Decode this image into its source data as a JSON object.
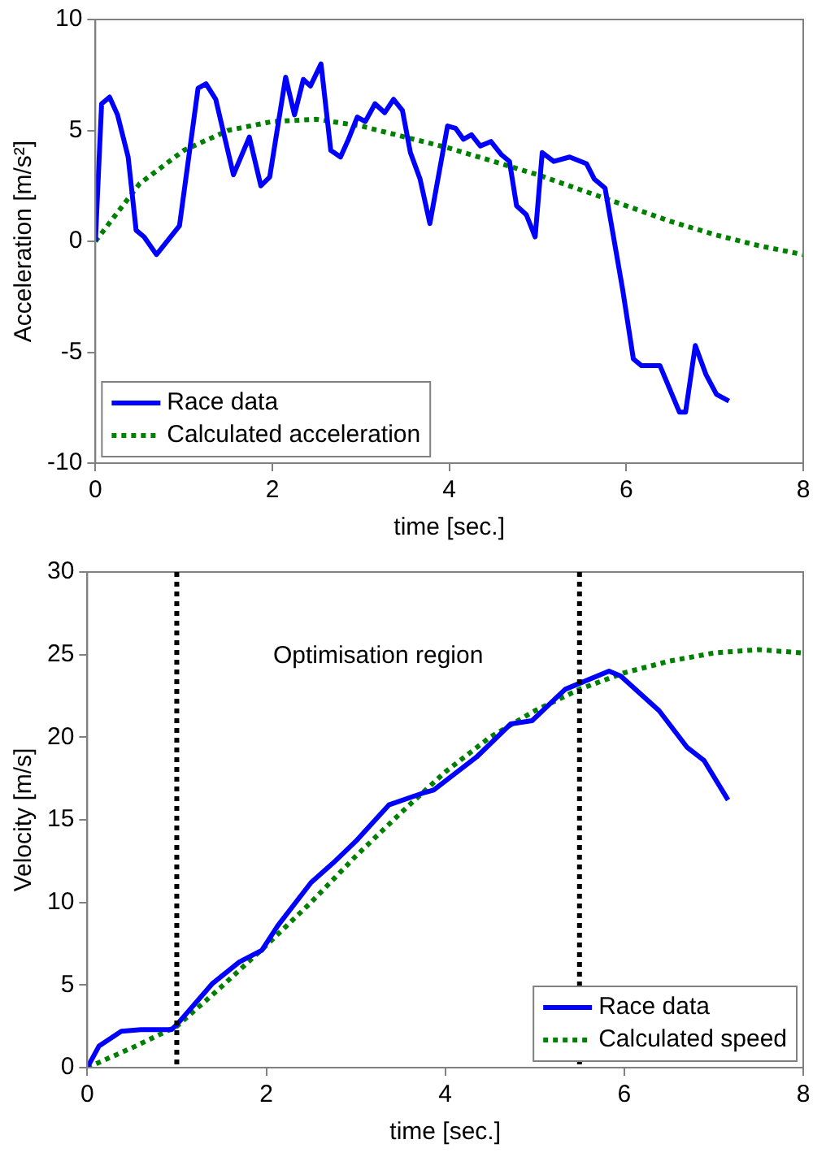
{
  "chart_data": [
    {
      "type": "line",
      "xlabel": "time [sec.]",
      "ylabel": "Acceleration [m/s²]",
      "xlim": [
        0,
        8
      ],
      "xticks": [
        0,
        2,
        4,
        6,
        8
      ],
      "ylim": [
        -10,
        10
      ],
      "yticks": [
        -10,
        -5,
        0,
        5,
        10
      ],
      "legend": "bottom left",
      "marker": "none",
      "series": [
        {
          "name": "Race data",
          "color": "#0000ff",
          "line_style": "solid",
          "x": [
            0,
            0.07,
            0.16,
            0.25,
            0.37,
            0.46,
            0.55,
            0.69,
            0.95,
            1.16,
            1.25,
            1.36,
            1.56,
            1.74,
            1.87,
            1.97,
            2.15,
            2.25,
            2.35,
            2.43,
            2.55,
            2.66,
            2.77,
            2.86,
            2.96,
            3.05,
            3.16,
            3.27,
            3.37,
            3.47,
            3.56,
            3.67,
            3.78,
            3.98,
            4.07,
            4.16,
            4.25,
            4.35,
            4.47,
            4.59,
            4.68,
            4.76,
            4.87,
            4.97,
            5.05,
            5.18,
            5.36,
            5.55,
            5.64,
            5.76,
            5.96,
            6.08,
            6.17,
            6.38,
            6.6,
            6.67,
            6.78,
            6.9,
            7.02,
            7.16
          ],
          "values": [
            0,
            6.2,
            6.5,
            5.7,
            3.8,
            0.5,
            0.2,
            -0.6,
            0.7,
            6.9,
            7.1,
            6.4,
            3.0,
            4.7,
            2.5,
            2.9,
            7.4,
            5.7,
            7.3,
            7.0,
            8.0,
            4.1,
            3.8,
            4.6,
            5.6,
            5.4,
            6.2,
            5.8,
            6.4,
            5.9,
            4.0,
            2.8,
            0.8,
            5.2,
            5.1,
            4.6,
            4.8,
            4.3,
            4.5,
            3.9,
            3.6,
            1.6,
            1.2,
            0.2,
            4.0,
            3.6,
            3.8,
            3.5,
            2.8,
            2.4,
            -2.2,
            -5.3,
            -5.6,
            -5.6,
            -7.7,
            -7.7,
            -4.7,
            -6.0,
            -6.9,
            -7.2
          ]
        },
        {
          "name": "Calculated acceleration",
          "color": "#008000",
          "line_style": "dotted",
          "x": [
            0,
            0.5,
            1,
            1.5,
            2,
            2.5,
            3,
            3.5,
            4,
            4.5,
            5,
            5.5,
            6,
            6.5,
            7,
            7.5,
            8
          ],
          "values": [
            0,
            2.6,
            4.1,
            5.0,
            5.4,
            5.5,
            5.2,
            4.7,
            4.2,
            3.6,
            3.0,
            2.3,
            1.6,
            0.9,
            0.3,
            -0.2,
            -0.6
          ]
        }
      ]
    },
    {
      "type": "line",
      "xlabel": "time [sec.]",
      "ylabel": "Velocity [m/s]",
      "xlim": [
        0,
        8
      ],
      "xticks": [
        0,
        2,
        4,
        6,
        8
      ],
      "ylim": [
        0,
        30
      ],
      "yticks": [
        0,
        5,
        10,
        15,
        20,
        25,
        30
      ],
      "legend": "bottom right",
      "marker": "none",
      "ref_lines": [
        {
          "axis": "x",
          "value": 1,
          "color": "#000000",
          "line_style": "dotted"
        },
        {
          "axis": "x",
          "value": 5.5,
          "color": "#000000",
          "line_style": "dotted"
        }
      ],
      "annotations": [
        "Optimisation region"
      ],
      "series": [
        {
          "name": "Race data",
          "color": "#0000ff",
          "line_style": "solid",
          "x": [
            0,
            0.13,
            0.38,
            0.6,
            0.94,
            1.0,
            1.4,
            1.7,
            1.95,
            2.13,
            2.5,
            2.75,
            3.0,
            3.37,
            3.74,
            3.87,
            4.35,
            4.73,
            4.97,
            5.34,
            5.83,
            5.96,
            6.39,
            6.7,
            6.89,
            7.16
          ],
          "values": [
            0,
            1.3,
            2.2,
            2.3,
            2.3,
            2.6,
            5.1,
            6.4,
            7.1,
            8.6,
            11.2,
            12.4,
            13.7,
            15.9,
            16.6,
            16.8,
            18.8,
            20.8,
            21.0,
            22.9,
            24.0,
            23.7,
            21.6,
            19.4,
            18.6,
            16.2
          ]
        },
        {
          "name": "Calculated speed",
          "color": "#008000",
          "line_style": "dotted",
          "x": [
            0,
            0.5,
            1,
            1.5,
            2,
            2.5,
            3,
            3.5,
            4,
            4.5,
            5,
            5.5,
            6,
            6.5,
            7,
            7.5,
            8
          ],
          "values": [
            0,
            1.2,
            2.5,
            4.9,
            7.4,
            10.0,
            12.8,
            15.4,
            17.9,
            20.0,
            21.6,
            22.9,
            23.9,
            24.6,
            25.1,
            25.3,
            25.1
          ]
        }
      ]
    }
  ]
}
